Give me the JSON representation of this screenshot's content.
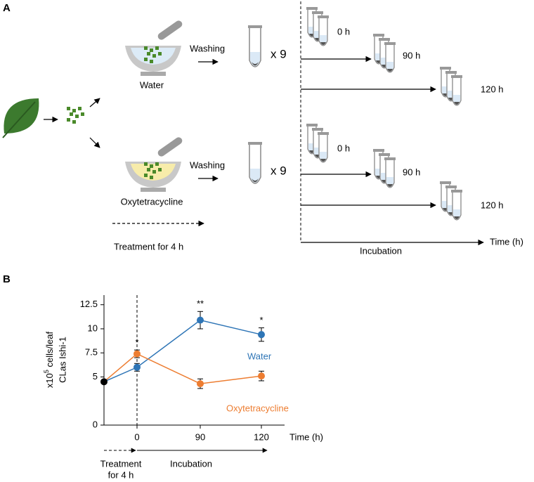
{
  "panel_a": {
    "label": "A",
    "washing": [
      "Washing",
      "Washing"
    ],
    "repeat": [
      "x 9",
      "x 9"
    ],
    "solutions": [
      "Water",
      "Oxytetracycline"
    ],
    "times": [
      [
        "0 h",
        "90 h",
        "120 h"
      ],
      [
        "0 h",
        "90 h",
        "120 h"
      ]
    ],
    "treatment": "Treatment  for 4 h",
    "incubation": "Incubation",
    "time_axis": "Time  (h)"
  },
  "chart_data": {
    "type": "line",
    "label": "B",
    "ylabel": {
      "base": "x10",
      "exponent": "5",
      "unit": " cells/leaf",
      "strain": "CLas Ishi-1"
    },
    "xlabel": "Time  (h)",
    "categories": [
      "0",
      "90",
      "120"
    ],
    "start": {
      "value": 4.5,
      "color": "#000000"
    },
    "series": [
      {
        "name": "Water",
        "color": "#2e75b6",
        "values": [
          6.0,
          10.9,
          9.4
        ],
        "errors": [
          0.4,
          0.9,
          0.7
        ]
      },
      {
        "name": "Oxytetracycline",
        "color": "#ed7d31",
        "values": [
          7.4,
          4.3,
          5.1
        ],
        "errors": [
          0.4,
          0.5,
          0.5
        ]
      }
    ],
    "annotations": [
      {
        "text": "*"
      },
      {
        "text": "**"
      },
      {
        "text": "*"
      }
    ],
    "ylim": [
      0,
      13.5
    ],
    "yticks": [
      0,
      5,
      7.5,
      10,
      12.5
    ],
    "phases": [
      [
        "Treatment",
        "for 4 h"
      ],
      "Incubation"
    ]
  }
}
